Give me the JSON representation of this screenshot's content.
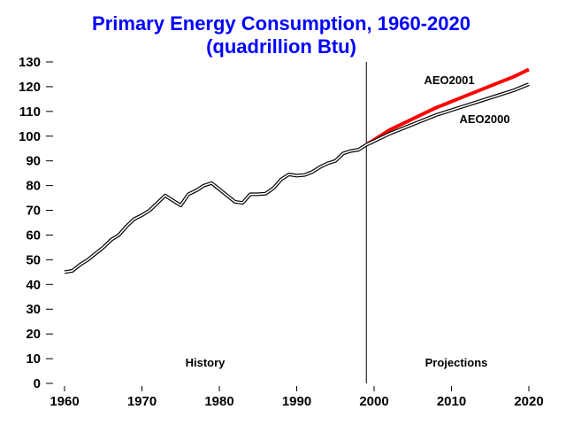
{
  "chart_data": {
    "type": "line",
    "title": "Primary Energy Consumption, 1960-2020",
    "subtitle": "(quadrillion Btu)",
    "xlabel": "",
    "ylabel": "",
    "xlim": [
      1960,
      2020
    ],
    "ylim": [
      0,
      130
    ],
    "x_ticks": [
      1960,
      1970,
      1980,
      1990,
      2000,
      2010,
      2020
    ],
    "y_ticks": [
      0,
      10,
      20,
      30,
      40,
      50,
      60,
      70,
      80,
      90,
      100,
      110,
      120,
      130
    ],
    "divider_year": 1999,
    "region_labels": {
      "history": "History",
      "projections": "Projections"
    },
    "series": [
      {
        "color": "#000000",
        "x": [
          1960,
          1961,
          1962,
          1963,
          1964,
          1965,
          1966,
          1967,
          1968,
          1969,
          1970,
          1971,
          1972,
          1973,
          1974,
          1975,
          1976,
          1977,
          1978,
          1979,
          1980,
          1981,
          1982,
          1983,
          1984,
          1985,
          1986,
          1987,
          1988,
          1989,
          1990,
          1991,
          1992,
          1993,
          1994,
          1995,
          1996,
          1997,
          1998,
          1999
        ],
        "y": [
          45,
          45.5,
          48,
          50,
          52.5,
          55,
          58,
          60,
          63.5,
          66.5,
          68,
          70,
          73,
          76,
          74,
          72,
          76.5,
          78,
          80,
          81,
          78.5,
          76,
          73.5,
          73,
          76.5,
          76.5,
          76.8,
          79,
          82.5,
          84.5,
          84,
          84.3,
          85.5,
          87.5,
          89,
          90,
          93,
          94,
          94.5,
          96.5
        ]
      },
      {
        "name": "AEO2001",
        "color": "#ff0000",
        "x": [
          1999,
          2000,
          2002,
          2004,
          2006,
          2008,
          2010,
          2012,
          2014,
          2016,
          2018,
          2020
        ],
        "y": [
          96.5,
          98.5,
          102.5,
          105.5,
          108.5,
          111.5,
          114,
          116.5,
          119,
          121.5,
          124,
          127
        ]
      },
      {
        "name": "AEO2000",
        "color": "#000000",
        "x": [
          1999,
          2000,
          2002,
          2004,
          2006,
          2008,
          2010,
          2012,
          2014,
          2016,
          2018,
          2020
        ],
        "y": [
          96.5,
          98,
          101,
          103.5,
          106,
          108.5,
          110.5,
          112.5,
          114.5,
          116.5,
          118.5,
          121
        ]
      }
    ],
    "title_color": "#0000ff"
  }
}
